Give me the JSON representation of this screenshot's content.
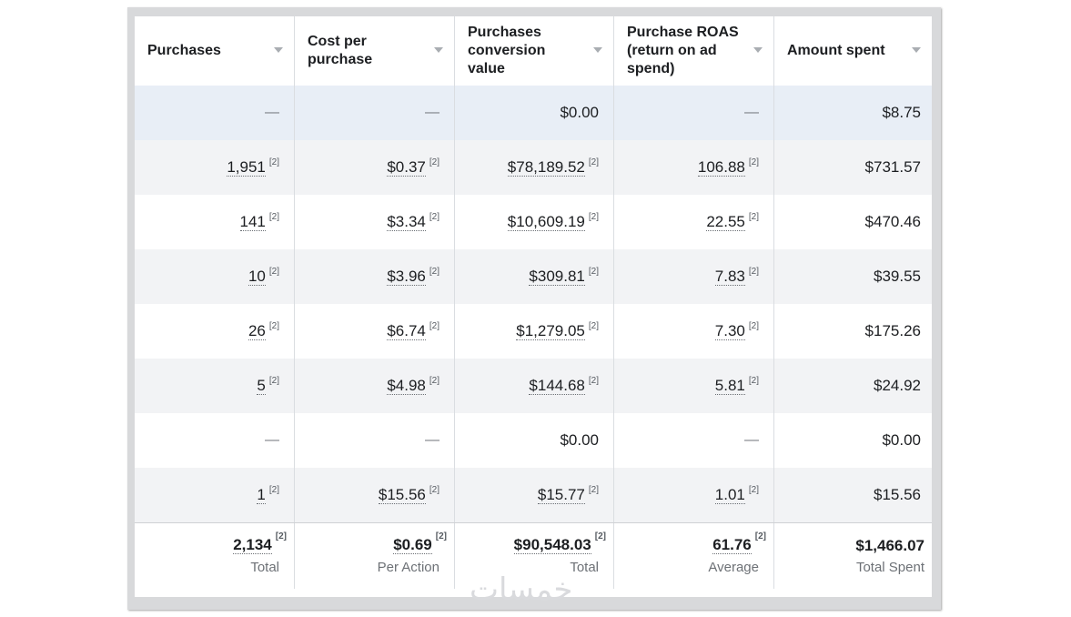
{
  "columns": [
    {
      "label": "Purchases"
    },
    {
      "label": "Cost per purchase"
    },
    {
      "label": "Purchases conversion value"
    },
    {
      "label": "Purchase ROAS (return on ad spend)"
    },
    {
      "label": "Amount spent"
    }
  ],
  "footnote": "[2]",
  "dash": "—",
  "rows": [
    {
      "purchases": "—",
      "cost": "—",
      "value": "$0.00",
      "roas": "—",
      "spent": "$8.75"
    },
    {
      "purchases": "1,951",
      "cost": "$0.37",
      "value": "$78,189.52",
      "roas": "106.88",
      "spent": "$731.57"
    },
    {
      "purchases": "141",
      "cost": "$3.34",
      "value": "$10,609.19",
      "roas": "22.55",
      "spent": "$470.46"
    },
    {
      "purchases": "10",
      "cost": "$3.96",
      "value": "$309.81",
      "roas": "7.83",
      "spent": "$39.55"
    },
    {
      "purchases": "26",
      "cost": "$6.74",
      "value": "$1,279.05",
      "roas": "7.30",
      "spent": "$175.26"
    },
    {
      "purchases": "5",
      "cost": "$4.98",
      "value": "$144.68",
      "roas": "5.81",
      "spent": "$24.92"
    },
    {
      "purchases": "—",
      "cost": "—",
      "value": "$0.00",
      "roas": "—",
      "spent": "$0.00"
    },
    {
      "purchases": "1",
      "cost": "$15.56",
      "value": "$15.77",
      "roas": "1.01",
      "spent": "$15.56"
    }
  ],
  "totals": {
    "purchases": {
      "value": "2,134",
      "label": "Total"
    },
    "cost": {
      "value": "$0.69",
      "label": "Per Action"
    },
    "value": {
      "value": "$90,548.03",
      "label": "Total"
    },
    "roas": {
      "value": "61.76",
      "label": "Average"
    },
    "spent": {
      "value": "$1,466.07",
      "label": "Total Spent"
    }
  },
  "watermark": "خمسات"
}
